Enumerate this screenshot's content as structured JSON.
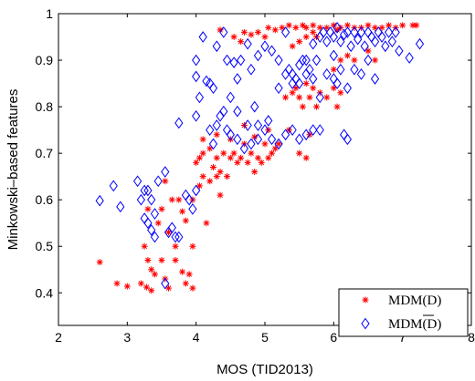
{
  "chart_data": {
    "type": "scatter",
    "title": "",
    "xlabel": "MOS (TID2013)",
    "ylabel": "Minkowski–based features",
    "xlim": [
      2,
      8
    ],
    "ylim": [
      0.33,
      1.0
    ],
    "xticks": [
      "2",
      "3",
      "4",
      "5",
      "6",
      "7",
      "8"
    ],
    "yticks": [
      "0.4",
      "0.5",
      "0.6",
      "0.7",
      "0.8",
      "0.9",
      "1"
    ],
    "xtick_values": [
      2,
      3,
      4,
      5,
      6,
      7,
      8
    ],
    "ytick_values": [
      0.4,
      0.5,
      0.6,
      0.7,
      0.8,
      0.9,
      1.0
    ],
    "grid": false,
    "legend_position": "bottom-right",
    "series": [
      {
        "name": "MDM(D)",
        "marker": "asterisk",
        "color": "#ff0000",
        "points": [
          [
            2.6,
            0.466
          ],
          [
            2.85,
            0.42
          ],
          [
            3.0,
            0.414
          ],
          [
            3.2,
            0.42
          ],
          [
            3.28,
            0.412
          ],
          [
            3.35,
            0.405
          ],
          [
            3.25,
            0.5
          ],
          [
            3.3,
            0.47
          ],
          [
            3.35,
            0.45
          ],
          [
            3.4,
            0.44
          ],
          [
            3.3,
            0.58
          ],
          [
            3.45,
            0.55
          ],
          [
            3.5,
            0.47
          ],
          [
            3.55,
            0.43
          ],
          [
            3.6,
            0.41
          ],
          [
            3.7,
            0.47
          ],
          [
            3.8,
            0.445
          ],
          [
            3.85,
            0.42
          ],
          [
            3.9,
            0.44
          ],
          [
            3.95,
            0.41
          ],
          [
            3.6,
            0.53
          ],
          [
            3.65,
            0.6
          ],
          [
            3.55,
            0.64
          ],
          [
            3.75,
            0.6
          ],
          [
            3.8,
            0.575
          ],
          [
            3.85,
            0.555
          ],
          [
            3.95,
            0.6
          ],
          [
            3.95,
            0.5
          ],
          [
            4.05,
            0.63
          ],
          [
            4.1,
            0.65
          ],
          [
            4.15,
            0.55
          ],
          [
            4.0,
            0.68
          ],
          [
            4.05,
            0.69
          ],
          [
            4.1,
            0.7
          ],
          [
            4.2,
            0.71
          ],
          [
            4.25,
            0.67
          ],
          [
            4.3,
            0.69
          ],
          [
            4.35,
            0.66
          ],
          [
            4.45,
            0.65
          ],
          [
            4.5,
            0.69
          ],
          [
            4.55,
            0.7
          ],
          [
            4.6,
            0.68
          ],
          [
            4.65,
            0.69
          ],
          [
            4.7,
            0.72
          ],
          [
            4.75,
            0.68
          ],
          [
            4.8,
            0.7
          ],
          [
            4.85,
            0.66
          ],
          [
            4.9,
            0.69
          ],
          [
            4.95,
            0.68
          ],
          [
            5.0,
            0.72
          ],
          [
            5.05,
            0.69
          ],
          [
            5.1,
            0.7
          ],
          [
            5.15,
            0.71
          ],
          [
            5.2,
            0.72
          ],
          [
            4.4,
            0.7
          ],
          [
            4.3,
            0.74
          ],
          [
            4.5,
            0.73
          ],
          [
            4.7,
            0.76
          ],
          [
            4.85,
            0.735
          ],
          [
            5.05,
            0.75
          ],
          [
            4.35,
            0.965
          ],
          [
            4.55,
            0.95
          ],
          [
            4.65,
            0.94
          ],
          [
            4.7,
            0.96
          ],
          [
            4.8,
            0.955
          ],
          [
            4.9,
            0.96
          ],
          [
            5.0,
            0.95
          ],
          [
            5.05,
            0.97
          ],
          [
            5.15,
            0.965
          ],
          [
            5.25,
            0.97
          ],
          [
            5.35,
            0.975
          ],
          [
            5.45,
            0.97
          ],
          [
            5.55,
            0.975
          ],
          [
            5.6,
            0.97
          ],
          [
            5.7,
            0.975
          ],
          [
            5.8,
            0.97
          ],
          [
            5.9,
            0.97
          ],
          [
            6.0,
            0.975
          ],
          [
            6.05,
            0.965
          ],
          [
            6.1,
            0.97
          ],
          [
            6.2,
            0.975
          ],
          [
            6.3,
            0.97
          ],
          [
            6.4,
            0.97
          ],
          [
            6.5,
            0.975
          ],
          [
            6.6,
            0.97
          ],
          [
            6.7,
            0.97
          ],
          [
            6.8,
            0.975
          ],
          [
            6.9,
            0.97
          ],
          [
            7.0,
            0.975
          ],
          [
            7.15,
            0.975
          ],
          [
            7.2,
            0.975
          ],
          [
            5.4,
            0.93
          ],
          [
            5.5,
            0.94
          ],
          [
            5.6,
            0.95
          ],
          [
            5.7,
            0.96
          ],
          [
            5.75,
            0.95
          ],
          [
            5.3,
            0.82
          ],
          [
            5.4,
            0.83
          ],
          [
            5.45,
            0.84
          ],
          [
            5.5,
            0.82
          ],
          [
            5.55,
            0.8
          ],
          [
            5.6,
            0.85
          ],
          [
            5.65,
            0.82
          ],
          [
            5.7,
            0.84
          ],
          [
            5.75,
            0.8
          ],
          [
            5.8,
            0.83
          ],
          [
            5.9,
            0.82
          ],
          [
            6.0,
            0.84
          ],
          [
            6.05,
            0.8
          ],
          [
            6.1,
            0.83
          ],
          [
            5.5,
            0.7
          ],
          [
            5.6,
            0.69
          ],
          [
            5.65,
            0.74
          ],
          [
            5.35,
            0.75
          ],
          [
            6.0,
            0.88
          ],
          [
            6.1,
            0.9
          ],
          [
            6.2,
            0.91
          ],
          [
            6.3,
            0.9
          ],
          [
            6.5,
            0.92
          ],
          [
            6.6,
            0.9
          ],
          [
            4.35,
            0.61
          ],
          [
            4.3,
            0.65
          ],
          [
            4.2,
            0.64
          ],
          [
            4.1,
            0.73
          ],
          [
            3.7,
            0.5
          ],
          [
            3.5,
            0.58
          ]
        ]
      },
      {
        "name": "MDM(D̅)",
        "marker": "diamond",
        "color": "#0000ff",
        "points": [
          [
            2.6,
            0.598
          ],
          [
            2.8,
            0.63
          ],
          [
            2.9,
            0.585
          ],
          [
            3.15,
            0.64
          ],
          [
            3.2,
            0.6
          ],
          [
            3.25,
            0.56
          ],
          [
            3.3,
            0.55
          ],
          [
            3.3,
            0.62
          ],
          [
            3.35,
            0.6
          ],
          [
            3.35,
            0.535
          ],
          [
            3.4,
            0.52
          ],
          [
            3.4,
            0.57
          ],
          [
            3.45,
            0.64
          ],
          [
            3.55,
            0.66
          ],
          [
            3.6,
            0.53
          ],
          [
            3.65,
            0.54
          ],
          [
            3.7,
            0.52
          ],
          [
            3.75,
            0.52
          ],
          [
            3.55,
            0.42
          ],
          [
            3.85,
            0.61
          ],
          [
            3.9,
            0.6
          ],
          [
            3.95,
            0.58
          ],
          [
            4.0,
            0.62
          ],
          [
            3.75,
            0.765
          ],
          [
            4.0,
            0.78
          ],
          [
            4.05,
            0.82
          ],
          [
            4.25,
            0.72
          ],
          [
            4.3,
            0.76
          ],
          [
            4.35,
            0.78
          ],
          [
            4.4,
            0.79
          ],
          [
            4.45,
            0.75
          ],
          [
            4.5,
            0.74
          ],
          [
            4.6,
            0.73
          ],
          [
            4.7,
            0.71
          ],
          [
            4.75,
            0.76
          ],
          [
            4.8,
            0.72
          ],
          [
            4.9,
            0.73
          ],
          [
            5.0,
            0.75
          ],
          [
            5.1,
            0.73
          ],
          [
            5.2,
            0.72
          ],
          [
            5.3,
            0.74
          ],
          [
            5.4,
            0.75
          ],
          [
            5.5,
            0.73
          ],
          [
            5.6,
            0.74
          ],
          [
            5.7,
            0.75
          ],
          [
            5.8,
            0.75
          ],
          [
            6.2,
            0.73
          ],
          [
            6.15,
            0.74
          ],
          [
            4.0,
            0.865
          ],
          [
            4.0,
            0.9
          ],
          [
            4.15,
            0.855
          ],
          [
            4.2,
            0.85
          ],
          [
            4.25,
            0.84
          ],
          [
            4.1,
            0.95
          ],
          [
            4.3,
            0.93
          ],
          [
            4.4,
            0.96
          ],
          [
            4.45,
            0.9
          ],
          [
            4.55,
            0.895
          ],
          [
            4.6,
            0.86
          ],
          [
            4.65,
            0.9
          ],
          [
            4.75,
            0.935
          ],
          [
            4.8,
            0.88
          ],
          [
            4.9,
            0.91
          ],
          [
            5.0,
            0.93
          ],
          [
            5.1,
            0.92
          ],
          [
            5.2,
            0.9
          ],
          [
            5.3,
            0.96
          ],
          [
            5.35,
            0.88
          ],
          [
            5.4,
            0.87
          ],
          [
            5.45,
            0.86
          ],
          [
            5.5,
            0.89
          ],
          [
            5.55,
            0.9
          ],
          [
            5.6,
            0.87
          ],
          [
            5.65,
            0.88
          ],
          [
            5.7,
            0.86
          ],
          [
            5.75,
            0.9
          ],
          [
            5.8,
            0.95
          ],
          [
            5.85,
            0.96
          ],
          [
            5.9,
            0.94
          ],
          [
            5.95,
            0.96
          ],
          [
            6.0,
            0.95
          ],
          [
            6.05,
            0.97
          ],
          [
            6.1,
            0.94
          ],
          [
            6.15,
            0.955
          ],
          [
            6.2,
            0.96
          ],
          [
            6.25,
            0.93
          ],
          [
            6.3,
            0.96
          ],
          [
            6.35,
            0.945
          ],
          [
            6.4,
            0.96
          ],
          [
            6.45,
            0.93
          ],
          [
            6.5,
            0.96
          ],
          [
            6.55,
            0.95
          ],
          [
            6.6,
            0.94
          ],
          [
            6.65,
            0.96
          ],
          [
            6.7,
            0.95
          ],
          [
            6.75,
            0.93
          ],
          [
            6.8,
            0.96
          ],
          [
            6.85,
            0.94
          ],
          [
            6.9,
            0.96
          ],
          [
            6.95,
            0.92
          ],
          [
            7.1,
            0.905
          ],
          [
            7.25,
            0.935
          ],
          [
            5.9,
            0.87
          ],
          [
            6.0,
            0.86
          ],
          [
            6.05,
            0.85
          ],
          [
            6.1,
            0.88
          ],
          [
            6.2,
            0.84
          ],
          [
            6.3,
            0.88
          ],
          [
            6.4,
            0.87
          ],
          [
            6.5,
            0.9
          ],
          [
            6.6,
            0.86
          ],
          [
            5.6,
            0.9
          ],
          [
            5.7,
            0.935
          ],
          [
            6.0,
            0.91
          ],
          [
            5.2,
            0.84
          ],
          [
            5.3,
            0.87
          ],
          [
            5.4,
            0.85
          ],
          [
            5.5,
            0.85
          ],
          [
            5.8,
            0.82
          ],
          [
            4.6,
            0.79
          ],
          [
            4.2,
            0.75
          ],
          [
            4.5,
            0.82
          ],
          [
            4.85,
            0.8
          ],
          [
            4.9,
            0.76
          ],
          [
            5.05,
            0.77
          ],
          [
            3.25,
            0.62
          ]
        ]
      }
    ],
    "legend": [
      {
        "label": "MDM(D)",
        "overline": false,
        "marker": "asterisk"
      },
      {
        "label_prefix": "MDM(",
        "label_symbol": "D",
        "label_suffix": ")",
        "overline": true,
        "marker": "diamond"
      }
    ]
  }
}
